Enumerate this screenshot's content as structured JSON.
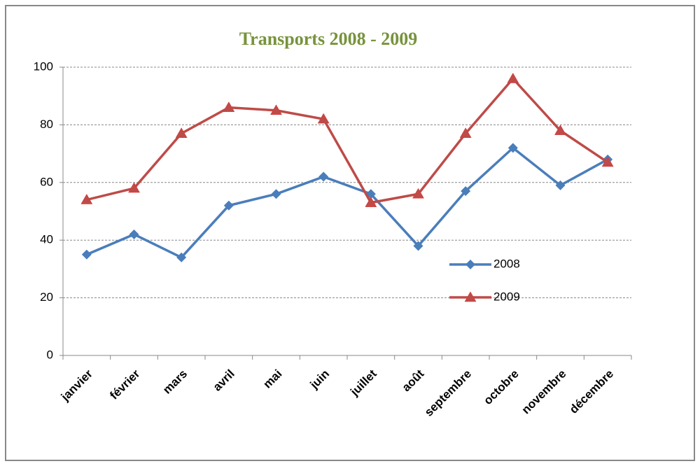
{
  "chart_data": {
    "type": "line",
    "title": "Transports 2008 - 2009",
    "categories": [
      "janvier",
      "février",
      "mars",
      "avril",
      "mai",
      "juin",
      "juillet",
      "août",
      "septembre",
      "octobre",
      "novembre",
      "décembre"
    ],
    "series": [
      {
        "name": "2008",
        "color": "#4a7ebb",
        "marker": "diamond",
        "values": [
          35,
          42,
          34,
          52,
          56,
          62,
          56,
          38,
          57,
          72,
          59,
          68
        ]
      },
      {
        "name": "2009",
        "color": "#be4b48",
        "marker": "triangle",
        "values": [
          54,
          58,
          77,
          86,
          85,
          82,
          53,
          56,
          77,
          96,
          78,
          67
        ]
      }
    ],
    "ylim": [
      0,
      100
    ],
    "yticks": [
      0,
      20,
      40,
      60,
      80,
      100
    ],
    "grid": true,
    "legend": "right"
  }
}
